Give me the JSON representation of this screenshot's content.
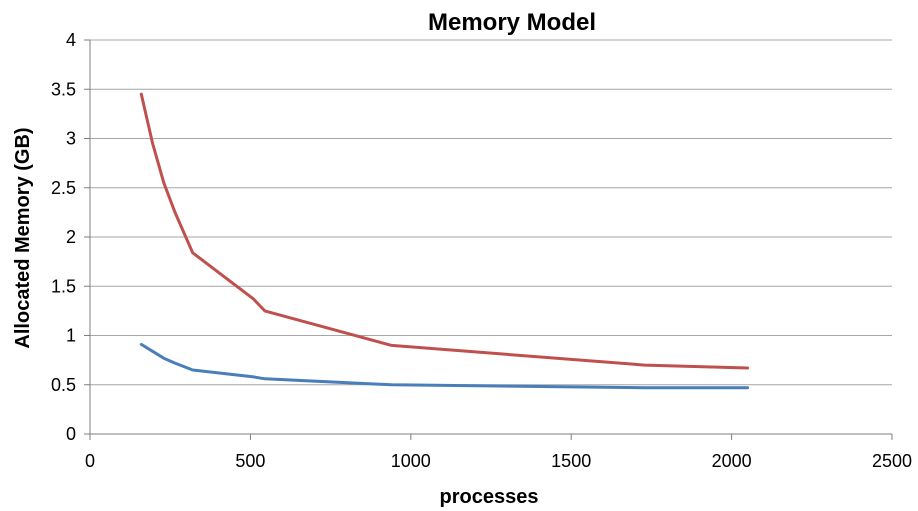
{
  "chart_data": {
    "type": "line",
    "title": "Memory Model",
    "xlabel": "processes",
    "ylabel": "Allocated Memory (GB)",
    "xlim": [
      0,
      2500
    ],
    "ylim": [
      0,
      4
    ],
    "xticks": [
      0,
      500,
      1000,
      1500,
      2000,
      2500
    ],
    "yticks": [
      0,
      0.5,
      1,
      1.5,
      2,
      2.5,
      3,
      3.5,
      4
    ],
    "grid": true,
    "legend": "none",
    "series": [
      {
        "color": "#c0504d",
        "x": [
          160,
          195,
          230,
          265,
          320,
          510,
          545,
          940,
          1730,
          2050
        ],
        "y": [
          3.45,
          2.95,
          2.55,
          2.25,
          1.84,
          1.37,
          1.25,
          0.9,
          0.7,
          0.67
        ]
      },
      {
        "color": "#4a7ebb",
        "x": [
          160,
          195,
          230,
          265,
          320,
          510,
          545,
          940,
          1730,
          2050
        ],
        "y": [
          0.91,
          0.84,
          0.77,
          0.72,
          0.65,
          0.58,
          0.56,
          0.5,
          0.47,
          0.47
        ]
      }
    ]
  }
}
